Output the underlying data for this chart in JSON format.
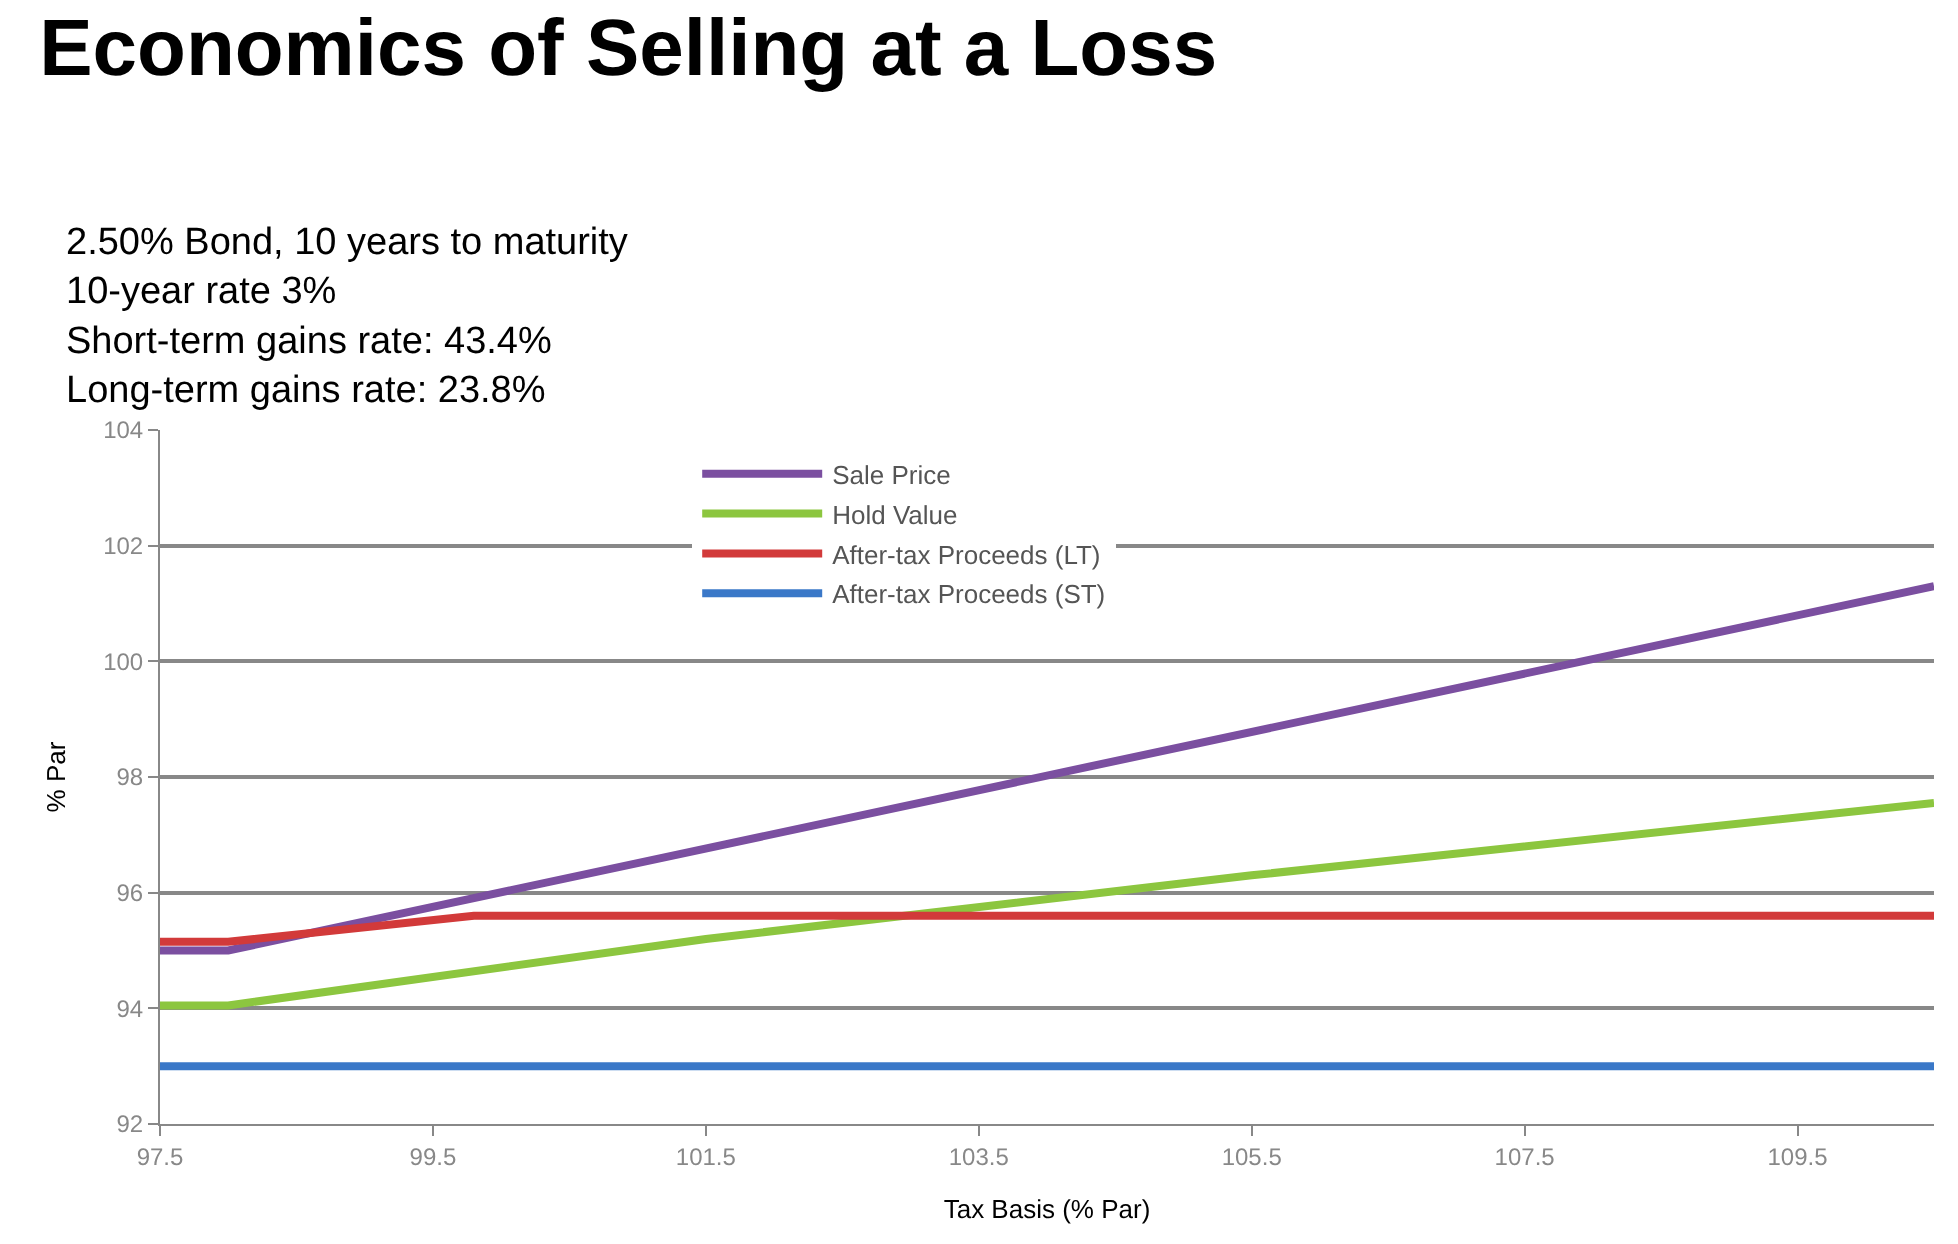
{
  "chart_data": {
    "type": "line",
    "title": "Economics of Selling at a Loss",
    "subtitle": "2.50% Bond, 10 years to maturity\n10-year rate 3%\nShort-term gains rate: 43.4%\nLong-term gains rate: 23.8%",
    "xlabel": "Tax Basis (% Par)",
    "ylabel": "% Par",
    "xlim": [
      97.5,
      110.5
    ],
    "xticks": [
      97.5,
      99.5,
      101.5,
      103.5,
      105.5,
      107.5,
      109.5
    ],
    "ylim": [
      92,
      104
    ],
    "yticks": [
      92,
      94,
      96,
      98,
      100,
      102,
      104
    ],
    "grid": "y",
    "legend": "top",
    "marker": "none",
    "line_style": "solid",
    "series": [
      {
        "name": "Sale Price",
        "color": "#7b4fa0",
        "x": [
          97.5,
          98,
          110.5
        ],
        "values": [
          95,
          95,
          101.3
        ]
      },
      {
        "name": "Hold Value",
        "color": "#8cc63f",
        "x": [
          97.5,
          98,
          101.5,
          105.5,
          110.5
        ],
        "values": [
          94.05,
          94.05,
          95.2,
          96.3,
          97.55
        ]
      },
      {
        "name": "After-tax Proceeds (LT)",
        "color": "#d23a3a",
        "x": [
          97.5,
          98,
          99.8,
          110.5
        ],
        "values": [
          95.15,
          95.15,
          95.6,
          95.6
        ]
      },
      {
        "name": "After-tax Proceeds (ST)",
        "color": "#3a78c8",
        "x": [
          97.5,
          110.5
        ],
        "values": [
          93,
          93
        ]
      }
    ]
  }
}
